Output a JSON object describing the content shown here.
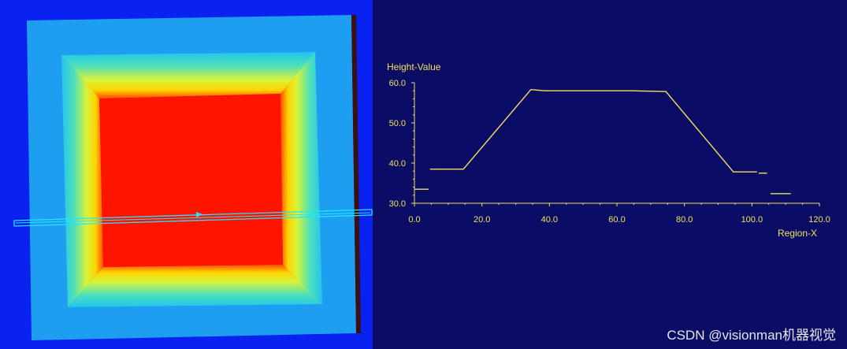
{
  "chart_data": {
    "type": "line",
    "ylabel": "Height-Value",
    "xlabel": "Region-X",
    "xlim": [
      0,
      120
    ],
    "ylim": [
      30,
      60
    ],
    "x_ticks": [
      0,
      20,
      40,
      60,
      80,
      100,
      120
    ],
    "x_tick_labels": [
      "0.0",
      "20.0",
      "40.0",
      "60.0",
      "80.0",
      "100.0",
      "120.0"
    ],
    "y_ticks": [
      30,
      40,
      50,
      60
    ],
    "y_tick_labels": [
      "30.0",
      "40.0",
      "50.0",
      "60.0"
    ],
    "grid": false,
    "colors": {
      "line": "#f2e25a",
      "axis": "#f2e25a",
      "background": "#0b0c66"
    },
    "segments": [
      {
        "x": [
          0,
          4.2
        ],
        "y": [
          33.5,
          33.5
        ]
      },
      {
        "x": [
          4.6,
          14.5,
          34.5,
          38.5,
          64.0,
          74.5,
          94.5,
          101.5
        ],
        "y": [
          38.5,
          38.5,
          58.3,
          58.0,
          58.0,
          57.8,
          37.8,
          37.8
        ]
      },
      {
        "x": [
          102.0,
          104.5
        ],
        "y": [
          37.5,
          37.5
        ]
      },
      {
        "x": [
          105.5,
          111.5
        ],
        "y": [
          32.4,
          32.4
        ]
      }
    ],
    "annotations": [
      "CSDN @visionman机器视觉"
    ]
  },
  "heightmap": {
    "colors": {
      "background": "#0a22f0",
      "base": "#1e9ef0",
      "cyan": "#22c4f0",
      "yellow": "#ffef00",
      "red": "#ff1400",
      "profile_line": "#22e6ff"
    }
  },
  "watermark": "CSDN @visionman机器视觉"
}
